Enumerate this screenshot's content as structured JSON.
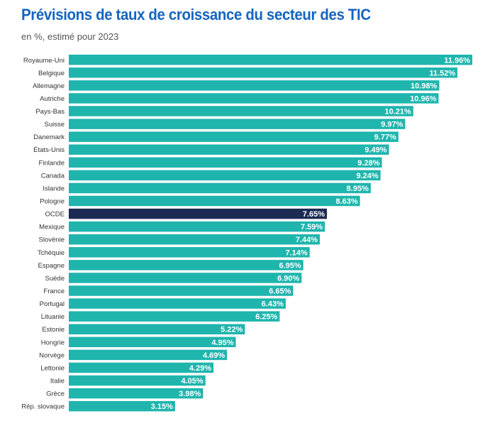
{
  "colors": {
    "bar": "#1fb5ad",
    "highlight": "#1c2b52",
    "title": "#1565c0",
    "label": "#333333",
    "value": "#ffffff"
  },
  "chart_data": {
    "type": "bar",
    "orientation": "horizontal",
    "title": "Prévisions de taux de croissance du secteur des TIC",
    "subtitle": "en %, estimé pour 2023",
    "xlabel": "",
    "ylabel": "",
    "xlim": [
      0,
      12
    ],
    "grid": false,
    "legend": "none",
    "highlight_category": "OCDE",
    "categories": [
      "Royaume-Uni",
      "Belgique",
      "Allemagne",
      "Autriche",
      "Pays-Bas",
      "Suisse",
      "Danemark",
      "États-Unis",
      "Finlande",
      "Canada",
      "Islande",
      "Pologne",
      "OCDE",
      "Mexique",
      "Slovénie",
      "Tchéquie",
      "Espagne",
      "Suède",
      "France",
      "Portugal",
      "Lituanie",
      "Estonie",
      "Hongrie",
      "Norvège",
      "Lettonie",
      "Italie",
      "Grèce",
      "Rép. slovaque"
    ],
    "values": [
      11.96,
      11.52,
      10.98,
      10.96,
      10.21,
      9.97,
      9.77,
      9.49,
      9.28,
      9.24,
      8.95,
      8.63,
      7.65,
      7.59,
      7.44,
      7.14,
      6.95,
      6.9,
      6.65,
      6.43,
      6.25,
      5.22,
      4.95,
      4.69,
      4.29,
      4.05,
      3.98,
      3.15
    ],
    "value_labels": [
      "11.96%",
      "11.52%",
      "10.98%",
      "10.96%",
      "10.21%",
      "9.97%",
      "9.77%",
      "9.49%",
      "9.28%",
      "9.24%",
      "8.95%",
      "8.63%",
      "7.65%",
      "7.59%",
      "7.44%",
      "7.14%",
      "6.95%",
      "6.90%",
      "6.65%",
      "6.43%",
      "6.25%",
      "5.22%",
      "4.95%",
      "4.69%",
      "4.29%",
      "4.05%",
      "3.98%",
      "3.15%"
    ]
  }
}
